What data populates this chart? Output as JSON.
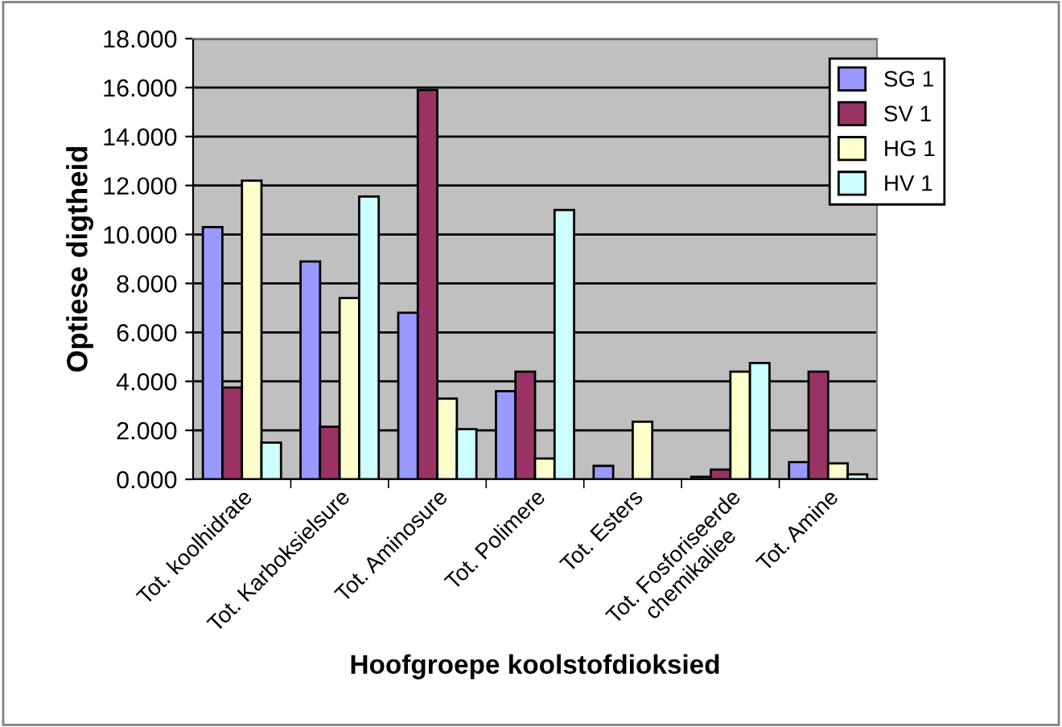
{
  "chart_data": {
    "type": "bar",
    "xlabel": "Hoofgroepe koolstofdioksied",
    "ylabel": "Optiese digtheid",
    "categories": [
      "Tot. koolhidrate",
      "Tot. Karboksielsure",
      "Tot. Aminosure",
      "Tot. Polimere",
      "Tot. Esters",
      "Tot. Fosforiseerde\nchemikaliee",
      "Tot. Amine"
    ],
    "series": [
      {
        "name": "SG 1",
        "color": "#9999ff",
        "values": [
          10.3,
          8.9,
          6.8,
          3.6,
          0.55,
          0.1,
          0.7
        ]
      },
      {
        "name": "SV 1",
        "color": "#993366",
        "values": [
          3.75,
          2.15,
          15.9,
          4.4,
          null,
          0.4,
          4.4
        ]
      },
      {
        "name": "HG 1",
        "color": "#ffffcc",
        "values": [
          12.2,
          7.4,
          3.3,
          0.85,
          2.35,
          4.4,
          0.65
        ]
      },
      {
        "name": "HV 1",
        "color": "#ccffff",
        "values": [
          1.5,
          11.55,
          2.05,
          11.0,
          null,
          4.75,
          0.2
        ]
      }
    ],
    "ylim": [
      0,
      18
    ],
    "yticks": [
      {
        "value": 0,
        "label": "0.000"
      },
      {
        "value": 2,
        "label": "2.000"
      },
      {
        "value": 4,
        "label": "4.000"
      },
      {
        "value": 6,
        "label": "6.000"
      },
      {
        "value": 8,
        "label": "8.000"
      },
      {
        "value": 10,
        "label": "10.000"
      },
      {
        "value": 12,
        "label": "12.000"
      },
      {
        "value": 14,
        "label": "14.000"
      },
      {
        "value": 16,
        "label": "16.000"
      },
      {
        "value": 18,
        "label": "18.000"
      }
    ],
    "grid": "y",
    "legend": "top right"
  }
}
